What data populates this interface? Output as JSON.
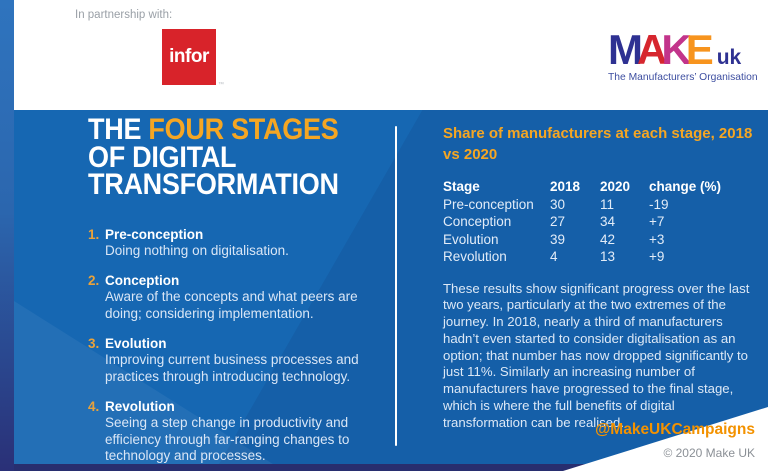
{
  "header": {
    "partnership_label": "In partnership with:",
    "infor": {
      "text": "infor",
      "tm": "™"
    },
    "makeuk": {
      "letters": [
        "M",
        "A",
        "K",
        "E"
      ],
      "uk": "uk",
      "tagline": "The Manufacturers’ Organisation"
    }
  },
  "left_panel": {
    "title": {
      "word1": "THE ",
      "highlight": "FOUR STAGES",
      "line2": "OF DIGITAL",
      "line3": "TRANSFORMATION"
    },
    "stages": [
      {
        "num": "1.",
        "name": "Pre-conception",
        "desc": "Doing nothing on digitalisation."
      },
      {
        "num": "2.",
        "name": "Conception",
        "desc": "Aware of the concepts and what peers are doing; considering implementation."
      },
      {
        "num": "3.",
        "name": "Evolution",
        "desc": "Improving current business processes and practices through introducing technology."
      },
      {
        "num": "4.",
        "name": "Revolution",
        "desc": "Seeing a step change in productivity and efficiency through far-ranging changes to technology and processes."
      }
    ]
  },
  "right_panel": {
    "heading": "Share of manufacturers at each stage, 2018 vs 2020",
    "table": {
      "headers": [
        "Stage",
        "2018",
        "2020",
        "change (%)"
      ],
      "rows": [
        [
          "Pre-conception",
          "30",
          "11",
          "-19"
        ],
        [
          "Conception",
          "27",
          "34",
          "+7"
        ],
        [
          "Evolution",
          "39",
          "42",
          "+3"
        ],
        [
          "Revolution",
          "4",
          "13",
          "+9"
        ]
      ]
    },
    "body": "These results show significant progress over the last two years, particularly at the two extremes of the journey. In 2018, nearly a third of manufacturers hadn’t even started to consider digitalisation as an option; that number has now dropped significantly to just 11%. Similarly an increasing number of manufacturers have progressed to the final stage, which is where the full benefits of digital transformation can be realised.",
    "social_handle": "@MakeUKCampaigns",
    "copyright": "© 2020 Make UK"
  },
  "colors": {
    "main_blue": "#1667B2",
    "accent_orange": "#F5A623",
    "social_orange": "#F39200",
    "navy_strip": "#282E6F",
    "infor_red": "#D8232A",
    "makeuk_blue": "#2E3192"
  }
}
